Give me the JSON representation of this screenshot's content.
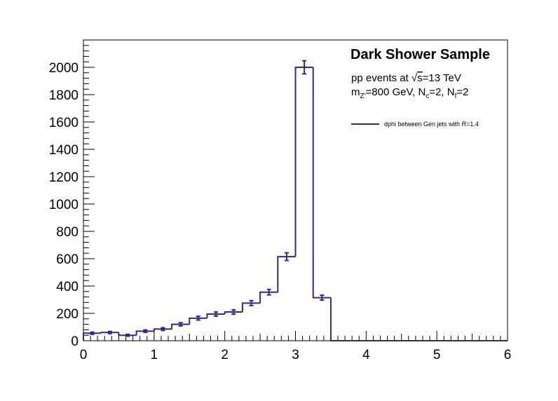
{
  "chart_data": {
    "type": "histogram",
    "title": "Dark Shower Sample",
    "info": {
      "line1_prefix": "pp events at ",
      "line1_sqrt": "√",
      "line1_s": "s",
      "line1_suffix": "=13 TeV",
      "line2_m": "m",
      "line2_m_sub": "Z'",
      "line2_mid": "=800 GeV, N",
      "line2_nc_sub": "c",
      "line2_mid2": "=2, N",
      "line2_nf_sub": "f",
      "line2_end": "=2"
    },
    "legend": {
      "position": "top-right",
      "entries": [
        {
          "name": "dphi between Gen jets with R=1.4",
          "color": "#2b2b8c"
        }
      ]
    },
    "xlim": [
      0,
      6
    ],
    "ylim": [
      0,
      2200
    ],
    "x_ticks": [
      0,
      1,
      2,
      3,
      4,
      5,
      6
    ],
    "x_tick_labels": [
      "0",
      "1",
      "2",
      "3",
      "4",
      "5",
      "6"
    ],
    "y_ticks": [
      0,
      200,
      400,
      600,
      800,
      1000,
      1200,
      1400,
      1600,
      1800,
      2000
    ],
    "y_tick_labels": [
      "0",
      "200",
      "400",
      "600",
      "800",
      "1000",
      "1200",
      "1400",
      "1600",
      "1800",
      "2000"
    ],
    "bin_edges": [
      0,
      0.25,
      0.5,
      0.75,
      1.0,
      1.25,
      1.5,
      1.75,
      2.0,
      2.25,
      2.5,
      2.75,
      3.0,
      3.25,
      3.5,
      6.0
    ],
    "values": [
      55,
      60,
      40,
      70,
      85,
      120,
      165,
      195,
      210,
      275,
      355,
      615,
      2000,
      315,
      0
    ],
    "errors": [
      8,
      8,
      7,
      9,
      10,
      12,
      14,
      15,
      16,
      18,
      20,
      28,
      48,
      18,
      0
    ],
    "line_color": "#2b2b8c",
    "grid": false
  }
}
